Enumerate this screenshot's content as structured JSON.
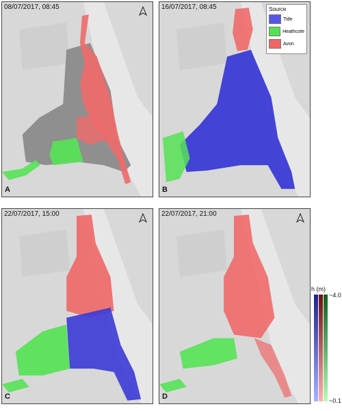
{
  "panels": [
    {
      "id": "a",
      "timestamp": "08/07/2017, 08:45",
      "letter": "A"
    },
    {
      "id": "b",
      "timestamp": "16/07/2017, 08:45",
      "letter": "B"
    },
    {
      "id": "c",
      "timestamp": "22/07/2017, 15:00",
      "letter": "C"
    },
    {
      "id": "d",
      "timestamp": "22/07/2017, 21:00",
      "letter": "D"
    }
  ],
  "legend": {
    "title": "Source",
    "items": [
      {
        "label": "Tide",
        "color": "#5555e8"
      },
      {
        "label": "Heathcote",
        "color": "#55e055"
      },
      {
        "label": "Avon",
        "color": "#ee6666"
      }
    ]
  },
  "colorbar": {
    "title": "h (m)",
    "max_label": "~4.0",
    "min_label": "~0.1"
  },
  "colors": {
    "tide": "#3b3bd6",
    "heathcote": "#56e356",
    "avon": "#ef6a6a",
    "land": "#d6d6d6",
    "estuary_empty": "#8f8f8f"
  },
  "north_icon": "north-arrow-icon"
}
